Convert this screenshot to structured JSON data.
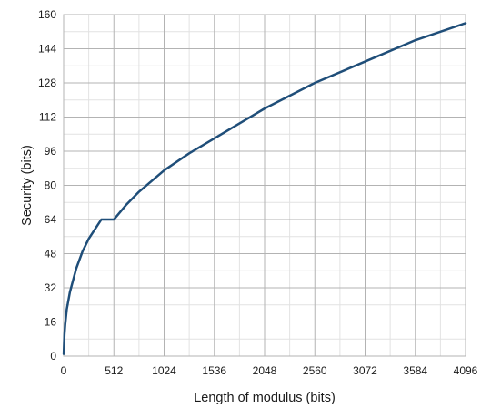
{
  "chart_data": {
    "type": "line",
    "title": "",
    "xlabel": "Length of modulus (bits)",
    "ylabel": "Security (bits)",
    "xlim": [
      0,
      4096
    ],
    "ylim": [
      0,
      160
    ],
    "x_ticks": [
      0,
      512,
      1024,
      1536,
      2048,
      2560,
      3072,
      3584,
      4096
    ],
    "x_tick_labels": [
      "0",
      "512",
      "1024",
      "1536",
      "2048",
      "2560",
      "3072",
      "3584",
      "4096"
    ],
    "y_ticks": [
      0,
      16,
      32,
      48,
      64,
      80,
      96,
      112,
      128,
      144,
      160
    ],
    "y_tick_labels": [
      "0",
      "16",
      "32",
      "48",
      "64",
      "80",
      "96",
      "112",
      "128",
      "144",
      "160"
    ],
    "grid": true,
    "legend": "none",
    "series": [
      {
        "color": "#1f4e79",
        "x": [
          1,
          8,
          16,
          32,
          64,
          128,
          192,
          256,
          384,
          512,
          640,
          768,
          1024,
          1280,
          1536,
          2048,
          2560,
          3072,
          3584,
          4096
        ],
        "y": [
          1,
          10,
          15,
          22,
          30,
          41,
          49,
          55,
          64,
          64,
          71,
          77,
          87,
          95,
          102,
          116,
          128,
          138,
          148,
          156
        ]
      }
    ]
  }
}
